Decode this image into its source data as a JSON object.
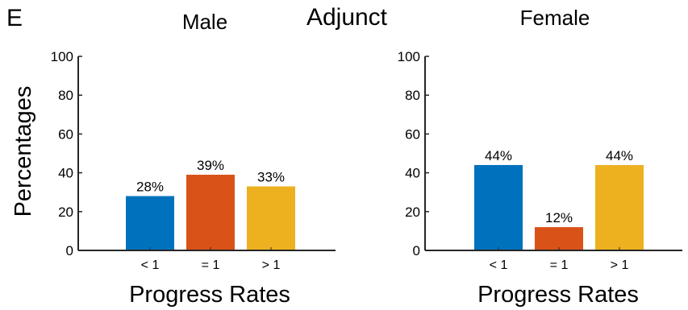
{
  "panel_letter": "E",
  "figure_title": "Adjunct",
  "chart_data": [
    {
      "type": "bar",
      "title": "Male",
      "xlabel": "Progress Rates",
      "ylabel": "Percentages",
      "categories": [
        "< 1",
        "= 1",
        "> 1"
      ],
      "values": [
        28,
        39,
        33
      ],
      "value_labels": [
        "28%",
        "39%",
        "33%"
      ],
      "colors": [
        "#0072bd",
        "#d95319",
        "#edb120"
      ],
      "ylim": [
        0,
        100
      ],
      "yticks": [
        0,
        20,
        40,
        60,
        80,
        100
      ],
      "grid": false,
      "legend": "none"
    },
    {
      "type": "bar",
      "title": "Female",
      "xlabel": "Progress Rates",
      "ylabel": "",
      "categories": [
        "< 1",
        "= 1",
        "> 1"
      ],
      "values": [
        44,
        12,
        44
      ],
      "value_labels": [
        "44%",
        "12%",
        "44%"
      ],
      "colors": [
        "#0072bd",
        "#d95319",
        "#edb120"
      ],
      "ylim": [
        0,
        100
      ],
      "yticks": [
        0,
        20,
        40,
        60,
        80,
        100
      ],
      "grid": false,
      "legend": "none"
    }
  ]
}
